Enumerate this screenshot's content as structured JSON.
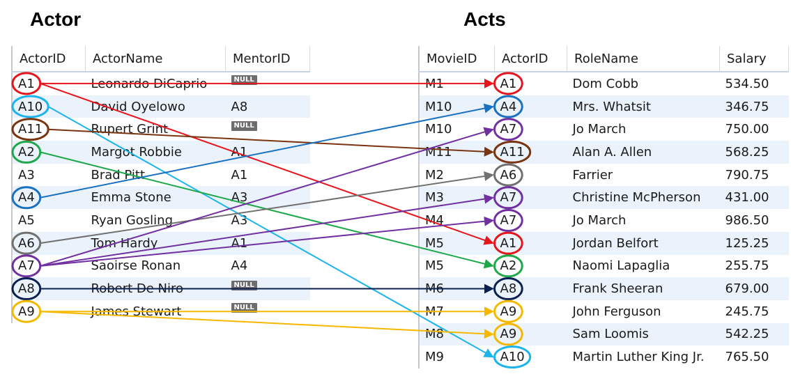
{
  "actor": {
    "title": "Actor",
    "headers": [
      "ActorID",
      "ActorName",
      "MentorID"
    ],
    "rows": [
      {
        "id": "A1",
        "name": "Leonardo DiCaprio",
        "mentor": "NULL",
        "mentor_null": true
      },
      {
        "id": "A10",
        "name": "David Oyelowo",
        "mentor": "A8",
        "mentor_null": false
      },
      {
        "id": "A11",
        "name": "Rupert Grint",
        "mentor": "NULL",
        "mentor_null": true
      },
      {
        "id": "A2",
        "name": "Margot Robbie",
        "mentor": "A1",
        "mentor_null": false
      },
      {
        "id": "A3",
        "name": "Brad Pitt",
        "mentor": "A1",
        "mentor_null": false
      },
      {
        "id": "A4",
        "name": "Emma Stone",
        "mentor": "A3",
        "mentor_null": false
      },
      {
        "id": "A5",
        "name": "Ryan Gosling",
        "mentor": "A3",
        "mentor_null": false
      },
      {
        "id": "A6",
        "name": "Tom Hardy",
        "mentor": "A1",
        "mentor_null": false
      },
      {
        "id": "A7",
        "name": "Saoirse Ronan",
        "mentor": "A4",
        "mentor_null": false
      },
      {
        "id": "A8",
        "name": "Robert De Niro",
        "mentor": "NULL",
        "mentor_null": true
      },
      {
        "id": "A9",
        "name": "James Stewart",
        "mentor": "NULL",
        "mentor_null": true
      }
    ]
  },
  "acts": {
    "title": "Acts",
    "headers": [
      "MovieID",
      "ActorID",
      "RoleName",
      "Salary"
    ],
    "rows": [
      {
        "movie": "M1",
        "actor": "A1",
        "role": "Dom Cobb",
        "salary": "534.50"
      },
      {
        "movie": "M10",
        "actor": "A4",
        "role": "Mrs. Whatsit",
        "salary": "346.75"
      },
      {
        "movie": "M10",
        "actor": "A7",
        "role": "Jo March",
        "salary": "750.00"
      },
      {
        "movie": "M11",
        "actor": "A11",
        "role": "Alan A. Allen",
        "salary": "568.25"
      },
      {
        "movie": "M2",
        "actor": "A6",
        "role": "Farrier",
        "salary": "790.75"
      },
      {
        "movie": "M3",
        "actor": "A7",
        "role": "Christine McPherson",
        "salary": "431.00"
      },
      {
        "movie": "M4",
        "actor": "A7",
        "role": "Jo March",
        "salary": "986.50"
      },
      {
        "movie": "M5",
        "actor": "A1",
        "role": "Jordan Belfort",
        "salary": "125.25"
      },
      {
        "movie": "M5",
        "actor": "A2",
        "role": "Naomi Lapaglia",
        "salary": "255.75"
      },
      {
        "movie": "M6",
        "actor": "A8",
        "role": "Frank Sheeran",
        "salary": "679.00"
      },
      {
        "movie": "M7",
        "actor": "A9",
        "role": "John Ferguson",
        "salary": "245.75"
      },
      {
        "movie": "M8",
        "actor": "A9",
        "role": "Sam Loomis",
        "salary": "542.25"
      },
      {
        "movie": "M9",
        "actor": "A10",
        "role": "Martin Luther King Jr.",
        "salary": "765.50"
      }
    ]
  },
  "colors": {
    "A1": "#e8141c",
    "A10": "#1cb4ec",
    "A11": "#7a3510",
    "A2": "#1ea84a",
    "A4": "#1a70c0",
    "A6": "#707070",
    "A7": "#7030a0",
    "A8": "#0b2050",
    "A9": "#f5b800"
  },
  "links": [
    {
      "from": 0,
      "to": 0,
      "key": "A1"
    },
    {
      "from": 0,
      "to": 7,
      "key": "A1"
    },
    {
      "from": 1,
      "to": 12,
      "key": "A10"
    },
    {
      "from": 2,
      "to": 3,
      "key": "A11"
    },
    {
      "from": 3,
      "to": 8,
      "key": "A2"
    },
    {
      "from": 5,
      "to": 1,
      "key": "A4"
    },
    {
      "from": 7,
      "to": 4,
      "key": "A6"
    },
    {
      "from": 8,
      "to": 2,
      "key": "A7"
    },
    {
      "from": 8,
      "to": 5,
      "key": "A7"
    },
    {
      "from": 8,
      "to": 6,
      "key": "A7"
    },
    {
      "from": 9,
      "to": 9,
      "key": "A8"
    },
    {
      "from": 10,
      "to": 10,
      "key": "A9"
    },
    {
      "from": 10,
      "to": 11,
      "key": "A9"
    }
  ]
}
